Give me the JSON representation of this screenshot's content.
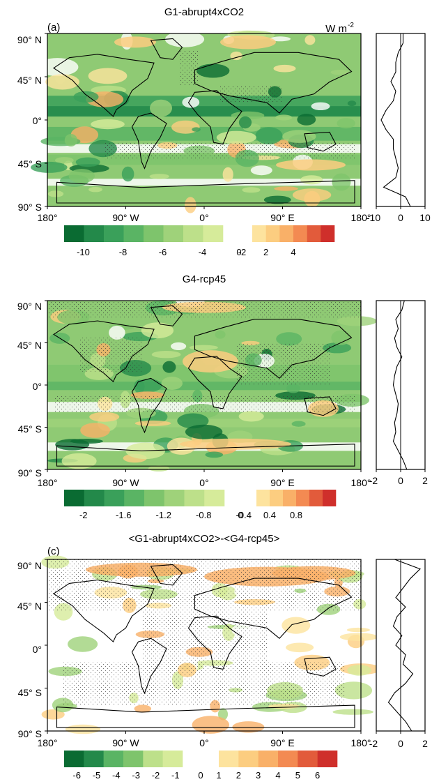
{
  "units": "W m",
  "units_exp": "-2",
  "lat_labels": [
    "90° N",
    "45° N",
    "0°",
    "45° S",
    "90° S"
  ],
  "lon_labels": [
    "180°",
    "90° W",
    "0°",
    "90° E",
    "180°"
  ],
  "colors": {
    "green_ramp": [
      "#0a6b32",
      "#23894a",
      "#3aa05a",
      "#5ab464",
      "#7ec46c",
      "#9fd27a",
      "#bde08a",
      "#d6eb9a"
    ],
    "orange_ramp": [
      "#fde39e",
      "#fccd80",
      "#f9b068",
      "#f38a52",
      "#e25b3b",
      "#cf2f2b"
    ],
    "ocean_base": "#8fca74",
    "land_base": "#b7dd8b"
  },
  "panels": [
    {
      "id": "a",
      "label": "(a)",
      "title": "G1-abrupt4xCO2",
      "show_units": true,
      "profile_ticks": [
        "-10",
        "0",
        "10"
      ],
      "colorbar_ticks": [
        "-10",
        "-8",
        "-6",
        "-4",
        "-2",
        "0",
        "2",
        "4"
      ],
      "chart_data": {
        "type": "heatmap",
        "title": "G1-abrupt4xCO2",
        "unit": "W m-2",
        "colorbar": {
          "green_levels": 8,
          "orange_levels": 6,
          "ticks": [
            -10,
            -8,
            -6,
            -4,
            -2,
            0,
            2,
            4
          ]
        },
        "zonal_mean": {
          "xlim": [
            -10,
            10
          ],
          "lat": [
            90,
            80,
            70,
            60,
            50,
            40,
            30,
            20,
            10,
            0,
            -10,
            -20,
            -30,
            -40,
            -50,
            -60,
            -70,
            -80,
            -90
          ],
          "value": [
            1,
            1,
            -1,
            -2,
            -2,
            -4,
            -2,
            -3,
            -6,
            -8,
            -6,
            -3,
            -3,
            -2,
            -1,
            -2,
            -7,
            2,
            4
          ]
        }
      }
    },
    {
      "id": "b",
      "label": "(b)",
      "title": "G4-rcp45",
      "show_units": true,
      "profile_ticks": [
        "-2",
        "0",
        "2"
      ],
      "colorbar_ticks": [
        "-2",
        "-1.6",
        "-1.2",
        "-0.8",
        "-0.4",
        "0",
        "0.4",
        "0.8"
      ],
      "chart_data": {
        "type": "heatmap",
        "title": "G4-rcp45",
        "unit": "W m-2",
        "colorbar": {
          "green_levels": 8,
          "orange_levels": 6,
          "ticks": [
            -2,
            -1.6,
            -1.2,
            -0.8,
            -0.4,
            0,
            0.4,
            0.8
          ]
        },
        "zonal_mean": {
          "xlim": [
            -2,
            2
          ],
          "lat": [
            90,
            80,
            70,
            60,
            50,
            40,
            30,
            20,
            10,
            0,
            -10,
            -20,
            -30,
            -40,
            -50,
            -60,
            -70,
            -80,
            -90
          ],
          "value": [
            0.3,
            0.1,
            -0.4,
            -0.2,
            -0.5,
            -0.3,
            0.1,
            -0.3,
            -0.5,
            -0.6,
            -0.4,
            -0.2,
            -0.3,
            -0.5,
            -0.4,
            -0.6,
            -0.2,
            0.2,
            0.5
          ]
        }
      }
    },
    {
      "id": "c",
      "label": "(c)",
      "title": "<G1-abrupt4xCO2>-<G4-rcp45>",
      "show_units": false,
      "profile_ticks": [
        "-2",
        "0",
        "2"
      ],
      "colorbar_ticks": [
        "-6",
        "-5",
        "-4",
        "-3",
        "-2",
        "-1",
        "0",
        "1",
        "2",
        "3",
        "4",
        "5",
        "6"
      ],
      "chart_data": {
        "type": "heatmap",
        "title": "<G1-abrupt4xCO2>-<G4-rcp45>",
        "unit": "W m-2",
        "colorbar": {
          "green_levels": 6,
          "orange_levels": 6,
          "ticks": [
            -6,
            -5,
            -4,
            -3,
            -2,
            -1,
            0,
            1,
            2,
            3,
            4,
            5,
            6
          ]
        },
        "zonal_mean": {
          "xlim": [
            -2,
            2
          ],
          "lat": [
            90,
            80,
            70,
            60,
            50,
            40,
            30,
            20,
            10,
            0,
            -10,
            -20,
            -30,
            -40,
            -50,
            -60,
            -70,
            -80,
            -90
          ],
          "value": [
            -0.5,
            1.6,
            0.8,
            0.2,
            -0.4,
            0.4,
            -0.3,
            -0.6,
            0.1,
            -0.4,
            0.4,
            0.2,
            1.0,
            0.4,
            -0.5,
            -1.0,
            -0.3,
            0.4,
            0.9
          ]
        }
      }
    }
  ]
}
